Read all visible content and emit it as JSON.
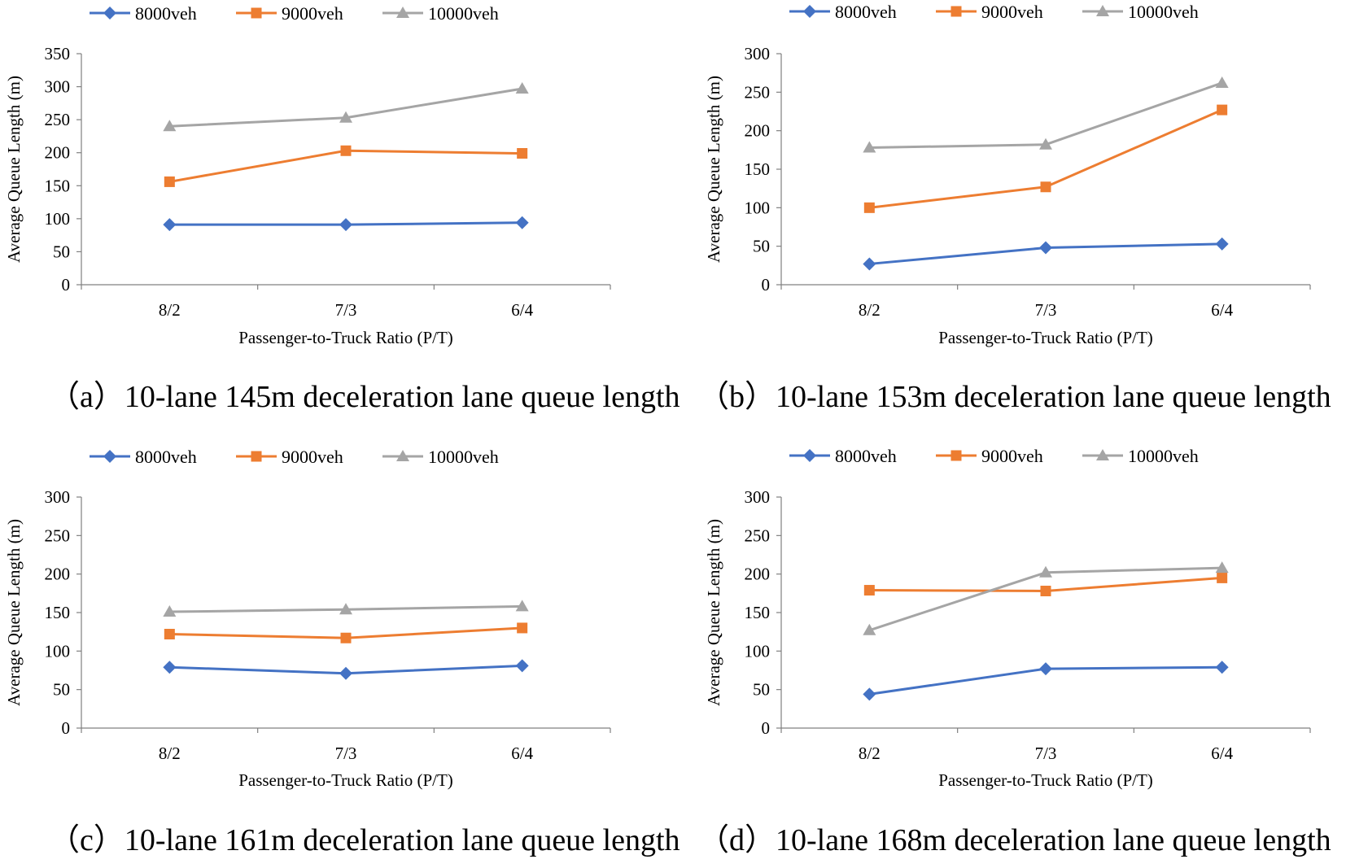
{
  "colors": {
    "8000veh": "#4472c4",
    "9000veh": "#ed7d31",
    "10000veh": "#a5a5a5",
    "axis": "#808080"
  },
  "chart_data": [
    {
      "type": "line",
      "caption": "（a）10-lane 145m deceleration lane queue length",
      "categories": [
        "8/2",
        "7/3",
        "6/4"
      ],
      "xlabel": "Passenger-to-Truck Ratio (P/T)",
      "ylabel": "Average Queue Length (m)",
      "ylim": [
        0,
        350
      ],
      "yticks": [
        0,
        50,
        100,
        150,
        200,
        250,
        300,
        350
      ],
      "legend_position": "top",
      "series": [
        {
          "name": "8000veh",
          "marker": "diamond",
          "values": [
            91,
            91,
            94
          ]
        },
        {
          "name": "9000veh",
          "marker": "square",
          "values": [
            156,
            203,
            199
          ]
        },
        {
          "name": "10000veh",
          "marker": "triangle",
          "values": [
            240,
            253,
            297
          ]
        }
      ]
    },
    {
      "type": "line",
      "caption": "（b）10-lane 153m deceleration lane queue length",
      "categories": [
        "8/2",
        "7/3",
        "6/4"
      ],
      "xlabel": "Passenger-to-Truck Ratio (P/T)",
      "ylabel": "Average Queue Length (m)",
      "ylim": [
        0,
        300
      ],
      "yticks": [
        0,
        50,
        100,
        150,
        200,
        250,
        300
      ],
      "legend_position": "top",
      "series": [
        {
          "name": "8000veh",
          "marker": "diamond",
          "values": [
            27,
            48,
            53
          ]
        },
        {
          "name": "9000veh",
          "marker": "square",
          "values": [
            100,
            127,
            227
          ]
        },
        {
          "name": "10000veh",
          "marker": "triangle",
          "values": [
            178,
            182,
            262
          ]
        }
      ]
    },
    {
      "type": "line",
      "caption": "（c）10-lane 161m deceleration lane queue length",
      "categories": [
        "8/2",
        "7/3",
        "6/4"
      ],
      "xlabel": "Passenger-to-Truck Ratio (P/T)",
      "ylabel": "Average Queue Length (m)",
      "ylim": [
        0,
        300
      ],
      "yticks": [
        0,
        50,
        100,
        150,
        200,
        250,
        300
      ],
      "legend_position": "top",
      "series": [
        {
          "name": "8000veh",
          "marker": "diamond",
          "values": [
            79,
            71,
            81
          ]
        },
        {
          "name": "9000veh",
          "marker": "square",
          "values": [
            122,
            117,
            130
          ]
        },
        {
          "name": "10000veh",
          "marker": "triangle",
          "values": [
            151,
            154,
            158
          ]
        }
      ]
    },
    {
      "type": "line",
      "caption": "（d）10-lane 168m deceleration lane queue length",
      "categories": [
        "8/2",
        "7/3",
        "6/4"
      ],
      "xlabel": "Passenger-to-Truck Ratio (P/T)",
      "ylabel": "Average Queue Length (m)",
      "ylim": [
        0,
        300
      ],
      "yticks": [
        0,
        50,
        100,
        150,
        200,
        250,
        300
      ],
      "legend_position": "top",
      "series": [
        {
          "name": "8000veh",
          "marker": "diamond",
          "values": [
            44,
            77,
            79
          ]
        },
        {
          "name": "9000veh",
          "marker": "square",
          "values": [
            179,
            178,
            195
          ]
        },
        {
          "name": "10000veh",
          "marker": "triangle",
          "values": [
            127,
            202,
            208
          ]
        }
      ]
    }
  ]
}
